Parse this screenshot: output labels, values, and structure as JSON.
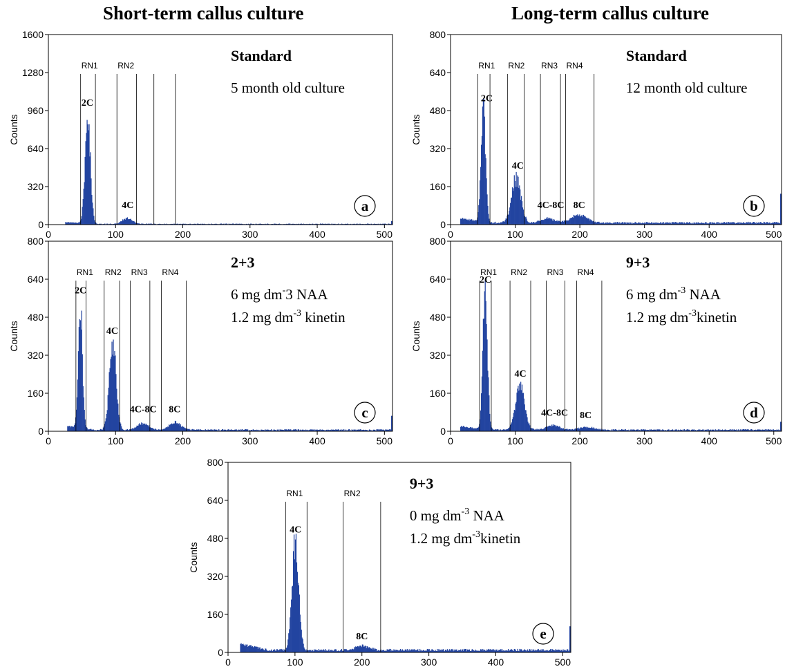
{
  "column_titles": [
    "Short-term callus culture",
    "Long-term callus culture"
  ],
  "colors": {
    "histogram": "#2344a0",
    "axis": "#000000",
    "background": "#ffffff"
  },
  "chart_data": [
    {
      "type": "histogram",
      "panel_letter": "a",
      "ylabel": "Counts",
      "xlim": [
        0,
        512
      ],
      "ylim": [
        0,
        1600
      ],
      "xticks": [
        0,
        100,
        200,
        300,
        400,
        500
      ],
      "yticks": [
        0,
        320,
        640,
        960,
        1280,
        1600
      ],
      "title": "Standard",
      "subtitle_lines": [
        {
          "text": "5 month old culture"
        }
      ],
      "regions": [
        {
          "label": "RN1",
          "x_start": 48,
          "x_end": 70
        },
        {
          "label": "RN2",
          "x_start": 102,
          "x_end": 131
        },
        {
          "label": "",
          "x_start": 157,
          "x_end": 189
        }
      ],
      "peaks": [
        {
          "label": "2C",
          "x": 58,
          "y": 880,
          "width": 4
        },
        {
          "label": "4C",
          "x": 117,
          "y": 50,
          "width": 7
        }
      ],
      "range": [
        25,
        510
      ],
      "baseline": 6,
      "edge_spike": 30,
      "peak_labels": [
        {
          "text": "2C",
          "x": 58,
          "y": 1000
        },
        {
          "text": "4C",
          "x": 118,
          "y": 140
        }
      ]
    },
    {
      "type": "histogram",
      "panel_letter": "b",
      "ylabel": "Counts",
      "xlim": [
        0,
        512
      ],
      "ylim": [
        0,
        800
      ],
      "xticks": [
        0,
        100,
        200,
        300,
        400,
        500
      ],
      "yticks": [
        0,
        160,
        320,
        480,
        640,
        800
      ],
      "title": "Standard",
      "subtitle_lines": [
        {
          "text": "12 month old culture"
        }
      ],
      "regions": [
        {
          "label": "RN1",
          "x_start": 42,
          "x_end": 61
        },
        {
          "label": "RN2",
          "x_start": 88,
          "x_end": 114
        },
        {
          "label": "RN3",
          "x_start": 139,
          "x_end": 170
        },
        {
          "label": "RN4",
          "x_start": 178,
          "x_end": 222
        }
      ],
      "peaks": [
        {
          "label": "2C",
          "x": 50,
          "y": 470,
          "width": 3.5
        },
        {
          "label": "4C",
          "x": 101,
          "y": 185,
          "width": 7
        },
        {
          "label": "4C-8C",
          "x": 150,
          "y": 18,
          "width": 10
        },
        {
          "label": "8C",
          "x": 198,
          "y": 32,
          "width": 12
        }
      ],
      "range": [
        15,
        510
      ],
      "baseline": 8,
      "edge_spike": 130,
      "peak_labels": [
        {
          "text": "2C",
          "x": 56,
          "y": 520
        },
        {
          "text": "4C",
          "x": 104,
          "y": 235
        },
        {
          "text": "4C-8C",
          "x": 155,
          "y": 70
        },
        {
          "text": "8C",
          "x": 199,
          "y": 70
        }
      ]
    },
    {
      "type": "histogram",
      "panel_letter": "c",
      "ylabel": "Counts",
      "xlim": [
        0,
        512
      ],
      "ylim": [
        0,
        800
      ],
      "xticks": [
        0,
        100,
        200,
        300,
        400,
        500
      ],
      "yticks": [
        0,
        160,
        320,
        480,
        640,
        800
      ],
      "title": "2+3",
      "subtitle_lines": [
        {
          "text": "6 mg dm",
          "sup": "-",
          "after": "3 NAA"
        },
        {
          "text": "1.2 mg dm",
          "sup": "-3",
          "after": " kinetin"
        }
      ],
      "regions": [
        {
          "label": "RN1",
          "x_start": 41,
          "x_end": 56
        },
        {
          "label": "RN2",
          "x_start": 83,
          "x_end": 106
        },
        {
          "label": "RN3",
          "x_start": 122,
          "x_end": 151
        },
        {
          "label": "RN4",
          "x_start": 168,
          "x_end": 205
        }
      ],
      "peaks": [
        {
          "label": "2C",
          "x": 47,
          "y": 530,
          "width": 3
        },
        {
          "label": "4C",
          "x": 95,
          "y": 365,
          "width": 5
        },
        {
          "label": "4C-8C",
          "x": 140,
          "y": 28,
          "width": 8
        },
        {
          "label": "8C",
          "x": 188,
          "y": 30,
          "width": 9
        }
      ],
      "range": [
        28,
        510
      ],
      "baseline": 6,
      "edge_spike": 65,
      "peak_labels": [
        {
          "text": "2C",
          "x": 48,
          "y": 580
        },
        {
          "text": "4C",
          "x": 95,
          "y": 410
        },
        {
          "text": "4C-8C",
          "x": 141,
          "y": 80
        },
        {
          "text": "8C",
          "x": 188,
          "y": 80
        }
      ]
    },
    {
      "type": "histogram",
      "panel_letter": "d",
      "ylabel": "Counts",
      "xlim": [
        0,
        512
      ],
      "ylim": [
        0,
        800
      ],
      "xticks": [
        0,
        100,
        200,
        300,
        400,
        500
      ],
      "yticks": [
        0,
        160,
        320,
        480,
        640,
        800
      ],
      "title": "9+3",
      "subtitle_lines": [
        {
          "text": "6 mg dm",
          "sup": "-3",
          "after": " NAA"
        },
        {
          "text": "1.2 mg dm",
          "sup": "-3",
          "after": "kinetin"
        }
      ],
      "regions": [
        {
          "label": "RN1",
          "x_start": 45,
          "x_end": 63
        },
        {
          "label": "RN2",
          "x_start": 92,
          "x_end": 124
        },
        {
          "label": "RN3",
          "x_start": 148,
          "x_end": 177
        },
        {
          "label": "RN4",
          "x_start": 195,
          "x_end": 234
        }
      ],
      "peaks": [
        {
          "label": "2C",
          "x": 53,
          "y": 575,
          "width": 3.5
        },
        {
          "label": "4C",
          "x": 107,
          "y": 180,
          "width": 7
        },
        {
          "label": "4C-8C",
          "x": 158,
          "y": 20,
          "width": 10
        },
        {
          "label": "8C",
          "x": 210,
          "y": 12,
          "width": 12
        }
      ],
      "range": [
        15,
        510
      ],
      "baseline": 6,
      "edge_spike": 40,
      "peak_labels": [
        {
          "text": "2C",
          "x": 54,
          "y": 625
        },
        {
          "text": "4C",
          "x": 108,
          "y": 230
        },
        {
          "text": "4C-8C",
          "x": 161,
          "y": 65
        },
        {
          "text": "8C",
          "x": 209,
          "y": 55
        }
      ]
    },
    {
      "type": "histogram",
      "panel_letter": "e",
      "ylabel": "Counts",
      "xlim": [
        0,
        512
      ],
      "ylim": [
        0,
        800
      ],
      "xticks": [
        0,
        100,
        200,
        300,
        400,
        500
      ],
      "yticks": [
        0,
        160,
        320,
        480,
        640,
        800
      ],
      "title": "9+3",
      "subtitle_lines": [
        {
          "text": "0 mg dm",
          "sup": "-3",
          "after": " NAA"
        },
        {
          "text": "1.2 mg dm",
          "sup": "-3",
          "after": "kinetin"
        }
      ],
      "regions": [
        {
          "label": "RN1",
          "x_start": 86,
          "x_end": 118
        },
        {
          "label": "RN2",
          "x_start": 172,
          "x_end": 228
        }
      ],
      "peaks": [
        {
          "label": "4C",
          "x": 100,
          "y": 455,
          "width": 5
        },
        {
          "label": "8C",
          "x": 200,
          "y": 18,
          "width": 10
        }
      ],
      "range": [
        18,
        510
      ],
      "baseline": 10,
      "edge_spike": 110,
      "peak_labels": [
        {
          "text": "4C",
          "x": 101,
          "y": 505
        },
        {
          "text": "8C",
          "x": 200,
          "y": 55
        }
      ]
    }
  ]
}
